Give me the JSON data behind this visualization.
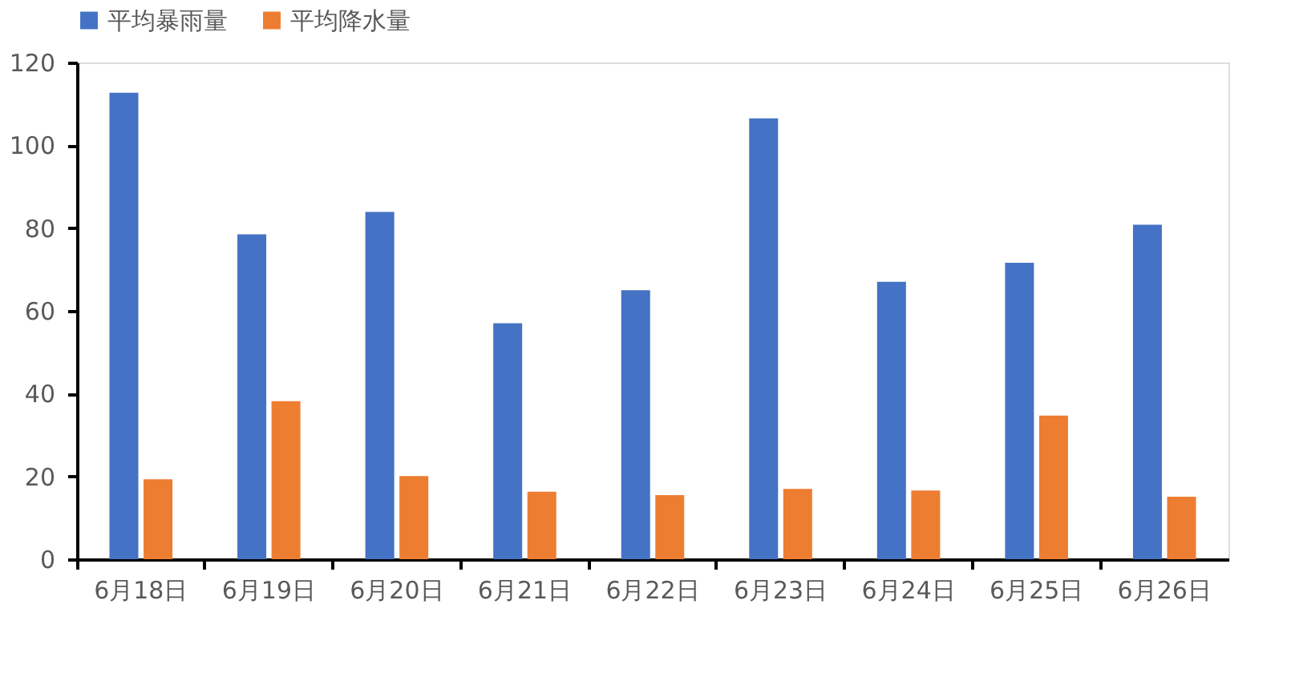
{
  "chart_data": {
    "type": "bar",
    "categories": [
      "6月18日",
      "6月19日",
      "6月20日",
      "6月21日",
      "6月22日",
      "6月23日",
      "6月24日",
      "6月25日",
      "6月26日"
    ],
    "series": [
      {
        "name": "平均暴雨量",
        "color": "#4472c4",
        "values": [
          112.7,
          78.5,
          83.9,
          57.0,
          65.0,
          106.5,
          67.0,
          71.6,
          80.8
        ]
      },
      {
        "name": "平均降水量",
        "color": "#ed7d31",
        "values": [
          19.3,
          38.2,
          20.1,
          16.3,
          15.5,
          17.0,
          16.6,
          34.7,
          15.1
        ]
      }
    ],
    "ylim": [
      0,
      120
    ],
    "yticks": [
      0,
      20,
      40,
      60,
      80,
      100,
      120
    ],
    "grid": false,
    "legend": "top"
  }
}
